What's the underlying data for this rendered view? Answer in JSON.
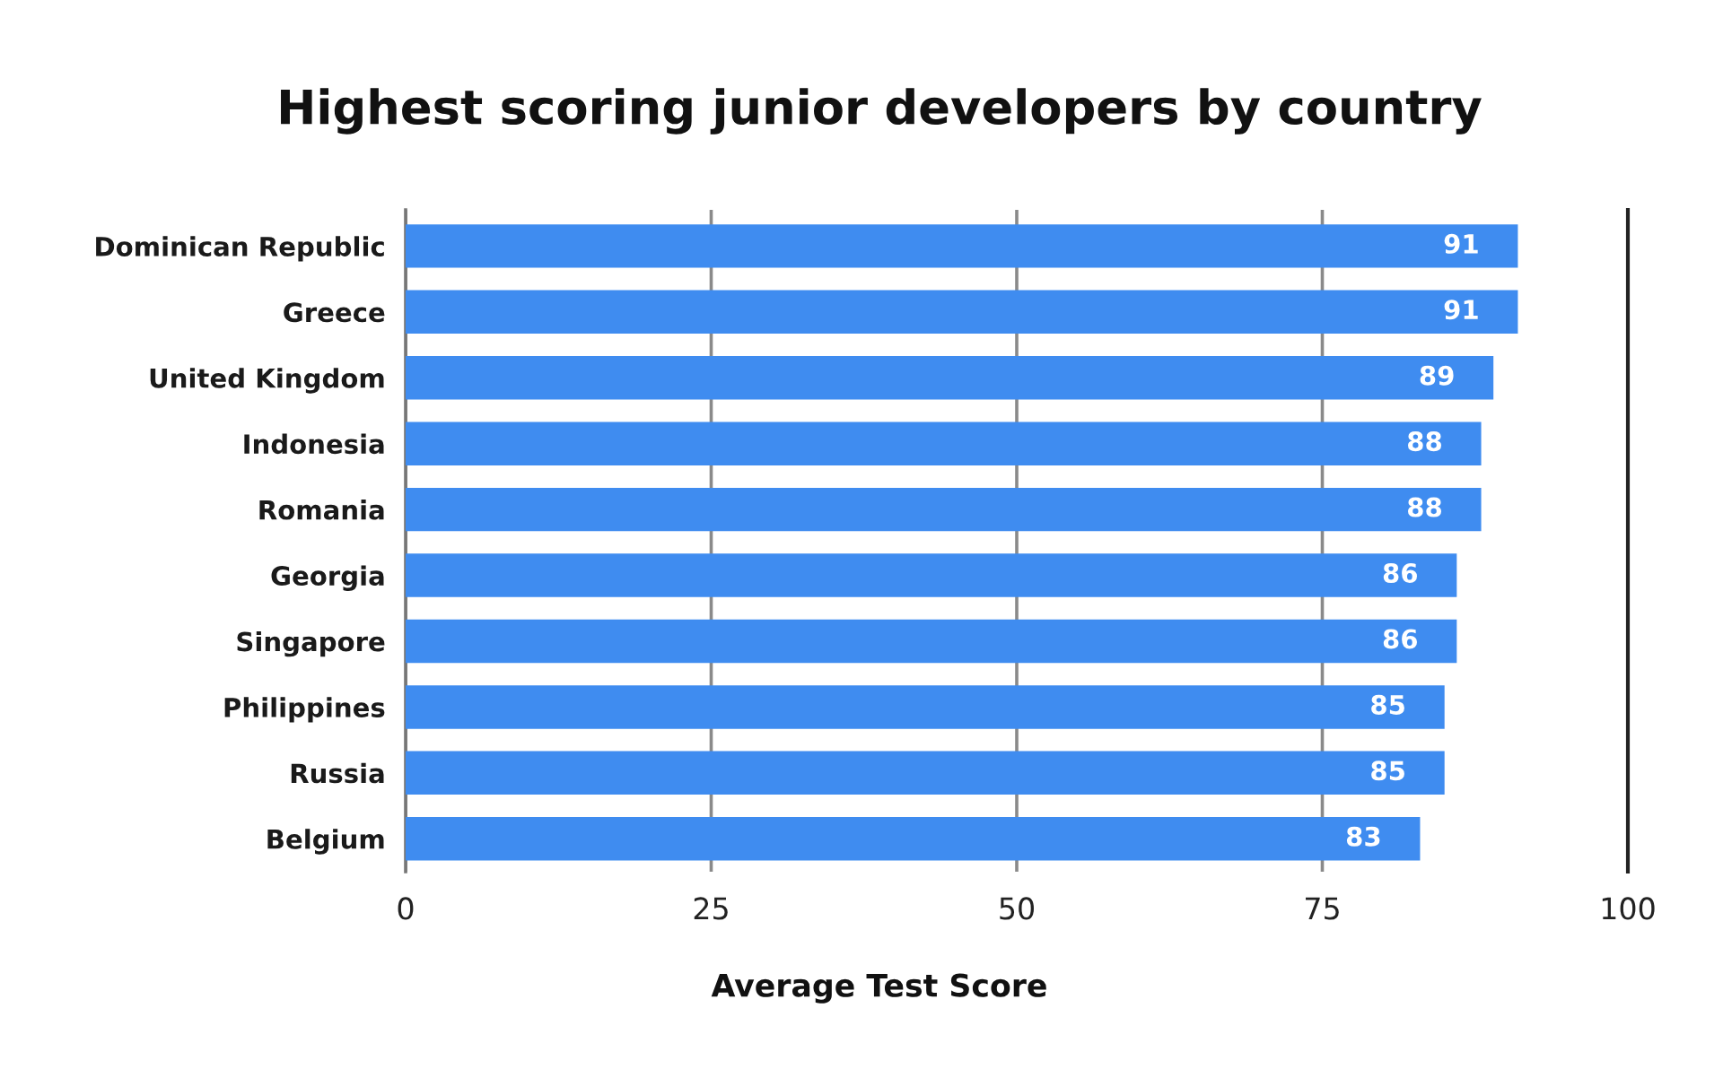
{
  "chart_data": {
    "type": "bar",
    "orientation": "horizontal",
    "title": "Highest scoring junior developers by country",
    "xlabel": "Average Test Score",
    "categories": [
      "Dominican Republic",
      "Greece",
      "United Kingdom",
      "Indonesia",
      "Romania",
      "Georgia",
      "Singapore",
      "Philippines",
      "Russia",
      "Belgium"
    ],
    "values": [
      91,
      91,
      89,
      88,
      88,
      86,
      86,
      85,
      85,
      83
    ],
    "color": "#3f8cf0",
    "xlim": [
      0,
      100
    ],
    "xticks": [
      0,
      25,
      50,
      75,
      100
    ],
    "grid": "x",
    "data_labels": true,
    "legend": false
  }
}
